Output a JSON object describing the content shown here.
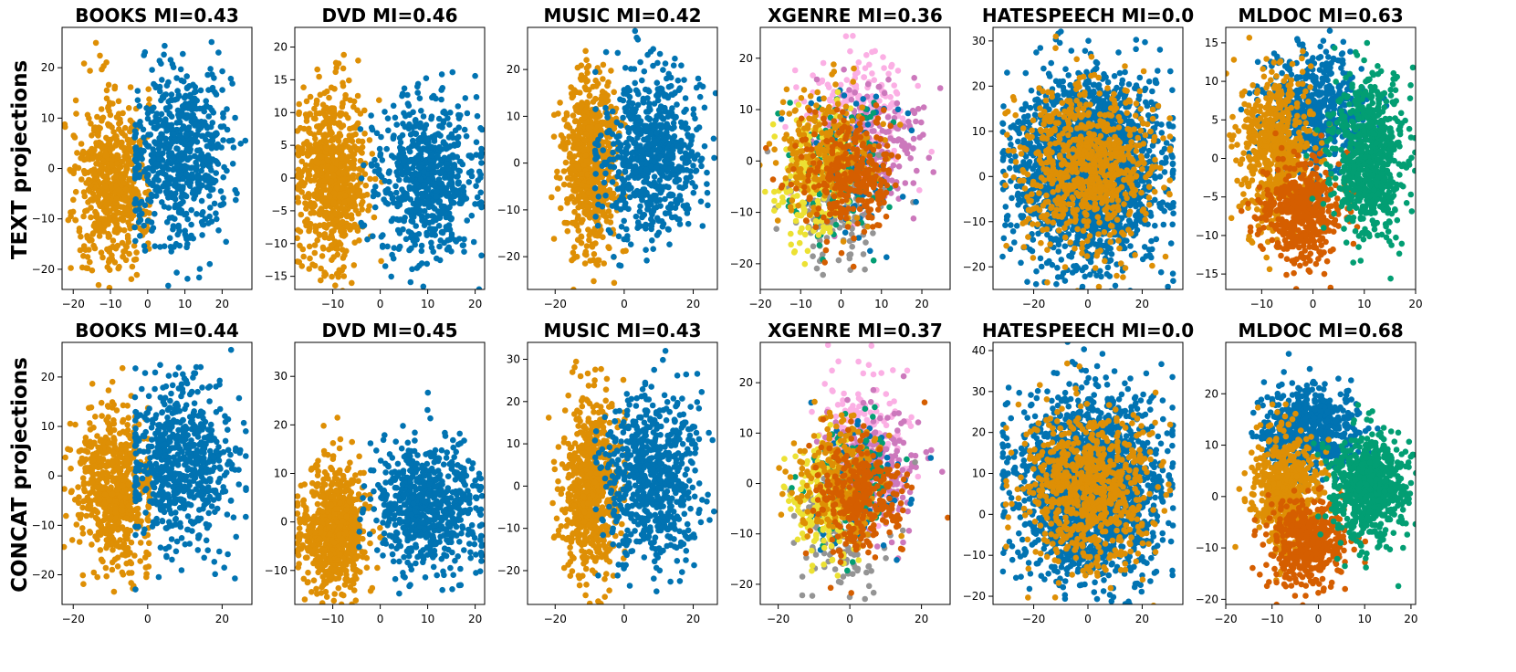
{
  "figure": {
    "row_labels": [
      "TEXT projections",
      "CONCAT projections"
    ]
  },
  "palette": {
    "blue": "#0173b2",
    "orange": "#de8f05",
    "green": "#029e73",
    "vermillion": "#d55e00",
    "lilac": "#cc78bc",
    "pink": "#fbafe4",
    "yellow": "#ece133",
    "gray": "#949494"
  },
  "chart_data": [
    {
      "type": "scatter",
      "row": 0,
      "col": 0,
      "title": "BOOKS MI=0.43",
      "xlim": [
        -23,
        28
      ],
      "ylim": [
        -24,
        28
      ],
      "xticks": [
        -20,
        -10,
        0,
        10,
        20
      ],
      "yticks": [
        -20,
        -10,
        0,
        10,
        20
      ],
      "clusters": [
        {
          "color": "orange",
          "cx": -9,
          "cy": -3,
          "sx": 5,
          "sy": 8,
          "n": 650,
          "xmin": -22,
          "xmax": 0
        },
        {
          "color": "blue",
          "cx": 9,
          "cy": 3,
          "sx": 7,
          "sy": 9,
          "n": 650,
          "xmin": -3,
          "xmax": 26
        }
      ]
    },
    {
      "type": "scatter",
      "row": 0,
      "col": 1,
      "title": "DVD MI=0.46",
      "xlim": [
        -18,
        22
      ],
      "ylim": [
        -17,
        23
      ],
      "xticks": [
        -10,
        0,
        10,
        20
      ],
      "yticks": [
        -15,
        -10,
        -5,
        0,
        5,
        10,
        15,
        20
      ],
      "clusters": [
        {
          "color": "orange",
          "cx": -10,
          "cy": 0,
          "sx": 3.5,
          "sy": 7,
          "n": 700,
          "xmin": -17,
          "xmax": 0
        },
        {
          "color": "blue",
          "cx": 10,
          "cy": 0,
          "sx": 5.5,
          "sy": 6,
          "n": 700,
          "xmin": -4,
          "xmax": 21
        }
      ]
    },
    {
      "type": "scatter",
      "row": 0,
      "col": 2,
      "title": "MUSIC MI=0.42",
      "xlim": [
        -28,
        27
      ],
      "ylim": [
        -27,
        29
      ],
      "xticks": [
        -20,
        0,
        20
      ],
      "yticks": [
        -20,
        -10,
        0,
        10,
        20
      ],
      "clusters": [
        {
          "color": "orange",
          "cx": -10,
          "cy": 0,
          "sx": 4,
          "sy": 9,
          "n": 700,
          "xmin": -22,
          "xmax": 0
        },
        {
          "color": "blue",
          "cx": 8,
          "cy": 2,
          "sx": 7,
          "sy": 9,
          "n": 700,
          "xmin": -8,
          "xmax": 26
        }
      ]
    },
    {
      "type": "scatter",
      "row": 0,
      "col": 3,
      "title": "XGENRE MI=0.36",
      "xlim": [
        -20,
        27
      ],
      "ylim": [
        -25,
        26
      ],
      "xticks": [
        -20,
        -10,
        0,
        10,
        20
      ],
      "yticks": [
        -20,
        -10,
        0,
        10,
        20
      ],
      "clusters": [
        {
          "color": "pink",
          "cx": 4,
          "cy": 8,
          "sx": 6,
          "sy": 7,
          "n": 240
        },
        {
          "color": "lilac",
          "cx": 9,
          "cy": 3,
          "sx": 6,
          "sy": 6,
          "n": 180
        },
        {
          "color": "gray",
          "cx": -2,
          "cy": -9,
          "sx": 6,
          "sy": 6,
          "n": 140
        },
        {
          "color": "blue",
          "cx": 2,
          "cy": 0,
          "sx": 6,
          "sy": 6,
          "n": 120
        },
        {
          "color": "green",
          "cx": -1,
          "cy": 0,
          "sx": 6,
          "sy": 6,
          "n": 150
        },
        {
          "color": "yellow",
          "cx": -7,
          "cy": -3,
          "sx": 5,
          "sy": 6,
          "n": 200
        },
        {
          "color": "orange",
          "cx": -3,
          "cy": 1,
          "sx": 6,
          "sy": 6,
          "n": 250
        },
        {
          "color": "vermillion",
          "cx": 2,
          "cy": -3,
          "sx": 6,
          "sy": 6,
          "n": 300
        }
      ]
    },
    {
      "type": "scatter",
      "row": 0,
      "col": 4,
      "title": "HATESPEECH MI=0.0",
      "xlim": [
        -35,
        35
      ],
      "ylim": [
        -25,
        33
      ],
      "xticks": [
        -20,
        0,
        20
      ],
      "yticks": [
        -20,
        -10,
        0,
        10,
        20,
        30
      ],
      "clusters": [
        {
          "color": "blue",
          "cx": 0,
          "cy": 2,
          "sx": 13,
          "sy": 10,
          "n": 2200,
          "xmin": -31,
          "xmax": 31
        },
        {
          "color": "orange",
          "cx": 0,
          "cy": 2,
          "sx": 12,
          "sy": 9,
          "n": 750,
          "xmin": -30,
          "xmax": 30
        }
      ]
    },
    {
      "type": "scatter",
      "row": 0,
      "col": 5,
      "title": "MLDOC MI=0.63",
      "xlim": [
        -17,
        20
      ],
      "ylim": [
        -17,
        17
      ],
      "xticks": [
        -10,
        0,
        10,
        20
      ],
      "yticks": [
        -15,
        -10,
        -5,
        0,
        5,
        10,
        15
      ],
      "clusters": [
        {
          "color": "blue",
          "cx": 0,
          "cy": 6,
          "sx": 5,
          "sy": 4,
          "n": 600
        },
        {
          "color": "orange",
          "cx": -7,
          "cy": 1,
          "sx": 3.5,
          "sy": 5,
          "n": 600
        },
        {
          "color": "vermillion",
          "cx": -2,
          "cy": -7,
          "sx": 4,
          "sy": 3.5,
          "n": 450
        },
        {
          "color": "green",
          "cx": 11,
          "cy": 0,
          "sx": 3.5,
          "sy": 5,
          "n": 700
        }
      ]
    },
    {
      "type": "scatter",
      "row": 1,
      "col": 0,
      "title": "BOOKS MI=0.44",
      "xlim": [
        -23,
        28
      ],
      "ylim": [
        -26,
        27
      ],
      "xticks": [
        -20,
        0,
        20
      ],
      "yticks": [
        -20,
        -10,
        0,
        10,
        20
      ],
      "clusters": [
        {
          "color": "orange",
          "cx": -9,
          "cy": -3,
          "sx": 5,
          "sy": 8,
          "n": 650,
          "xmin": -22,
          "xmax": 0
        },
        {
          "color": "blue",
          "cx": 9,
          "cy": 3,
          "sx": 7,
          "sy": 9,
          "n": 650,
          "xmin": -3,
          "xmax": 26
        }
      ]
    },
    {
      "type": "scatter",
      "row": 1,
      "col": 1,
      "title": "DVD MI=0.45",
      "xlim": [
        -18,
        22
      ],
      "ylim": [
        -17,
        37
      ],
      "xticks": [
        -10,
        0,
        10,
        20
      ],
      "yticks": [
        -10,
        0,
        10,
        20,
        30
      ],
      "clusters": [
        {
          "color": "orange",
          "cx": -10,
          "cy": -2,
          "sx": 3.5,
          "sy": 7,
          "n": 700,
          "xmin": -17,
          "xmax": 0
        },
        {
          "color": "blue",
          "cx": 10,
          "cy": 3,
          "sx": 5.5,
          "sy": 7,
          "n": 700,
          "xmin": -4,
          "xmax": 21
        }
      ]
    },
    {
      "type": "scatter",
      "row": 1,
      "col": 2,
      "title": "MUSIC MI=0.43",
      "xlim": [
        -28,
        27
      ],
      "ylim": [
        -28,
        34
      ],
      "xticks": [
        -20,
        0,
        20
      ],
      "yticks": [
        -20,
        -10,
        0,
        10,
        20,
        30
      ],
      "clusters": [
        {
          "color": "orange",
          "cx": -10,
          "cy": -1,
          "sx": 4,
          "sy": 10,
          "n": 700,
          "xmin": -22,
          "xmax": 0
        },
        {
          "color": "blue",
          "cx": 8,
          "cy": 2,
          "sx": 7,
          "sy": 10,
          "n": 700,
          "xmin": -8,
          "xmax": 26
        }
      ]
    },
    {
      "type": "scatter",
      "row": 1,
      "col": 3,
      "title": "XGENRE MI=0.37",
      "xlim": [
        -25,
        28
      ],
      "ylim": [
        -24,
        28
      ],
      "xticks": [
        -20,
        0,
        20
      ],
      "yticks": [
        -20,
        -10,
        0,
        10,
        20
      ],
      "clusters": [
        {
          "color": "pink",
          "cx": 4,
          "cy": 8,
          "sx": 6,
          "sy": 7,
          "n": 240
        },
        {
          "color": "lilac",
          "cx": 9,
          "cy": 3,
          "sx": 6,
          "sy": 6,
          "n": 180
        },
        {
          "color": "gray",
          "cx": -2,
          "cy": -10,
          "sx": 6,
          "sy": 6,
          "n": 140
        },
        {
          "color": "blue",
          "cx": 2,
          "cy": 0,
          "sx": 6,
          "sy": 6,
          "n": 120
        },
        {
          "color": "green",
          "cx": -1,
          "cy": 0,
          "sx": 6,
          "sy": 6,
          "n": 150
        },
        {
          "color": "yellow",
          "cx": -7,
          "cy": -3,
          "sx": 5,
          "sy": 6,
          "n": 200
        },
        {
          "color": "orange",
          "cx": -3,
          "cy": 1,
          "sx": 6,
          "sy": 6,
          "n": 250
        },
        {
          "color": "vermillion",
          "cx": 2,
          "cy": -3,
          "sx": 6,
          "sy": 6,
          "n": 300
        }
      ]
    },
    {
      "type": "scatter",
      "row": 1,
      "col": 4,
      "title": "HATESPEECH MI=0.0",
      "xlim": [
        -35,
        35
      ],
      "ylim": [
        -22,
        42
      ],
      "xticks": [
        -20,
        0,
        20
      ],
      "yticks": [
        -20,
        -10,
        0,
        10,
        20,
        30,
        40
      ],
      "clusters": [
        {
          "color": "blue",
          "cx": 0,
          "cy": 6,
          "sx": 13,
          "sy": 11,
          "n": 2200,
          "xmin": -31,
          "xmax": 31
        },
        {
          "color": "orange",
          "cx": 0,
          "cy": 6,
          "sx": 12,
          "sy": 10,
          "n": 750,
          "xmin": -30,
          "xmax": 30
        }
      ]
    },
    {
      "type": "scatter",
      "row": 1,
      "col": 5,
      "title": "MLDOC MI=0.68",
      "xlim": [
        -20,
        21
      ],
      "ylim": [
        -21,
        30
      ],
      "xticks": [
        -20,
        -10,
        0,
        10,
        20
      ],
      "yticks": [
        -20,
        -10,
        0,
        10,
        20
      ],
      "clusters": [
        {
          "color": "blue",
          "cx": -2,
          "cy": 13,
          "sx": 5,
          "sy": 4,
          "n": 600
        },
        {
          "color": "orange",
          "cx": -7,
          "cy": 1,
          "sx": 3.5,
          "sy": 6,
          "n": 600
        },
        {
          "color": "vermillion",
          "cx": -2,
          "cy": -9,
          "sx": 4,
          "sy": 4,
          "n": 450
        },
        {
          "color": "green",
          "cx": 11,
          "cy": 2,
          "sx": 4,
          "sy": 5,
          "n": 700
        }
      ]
    }
  ]
}
